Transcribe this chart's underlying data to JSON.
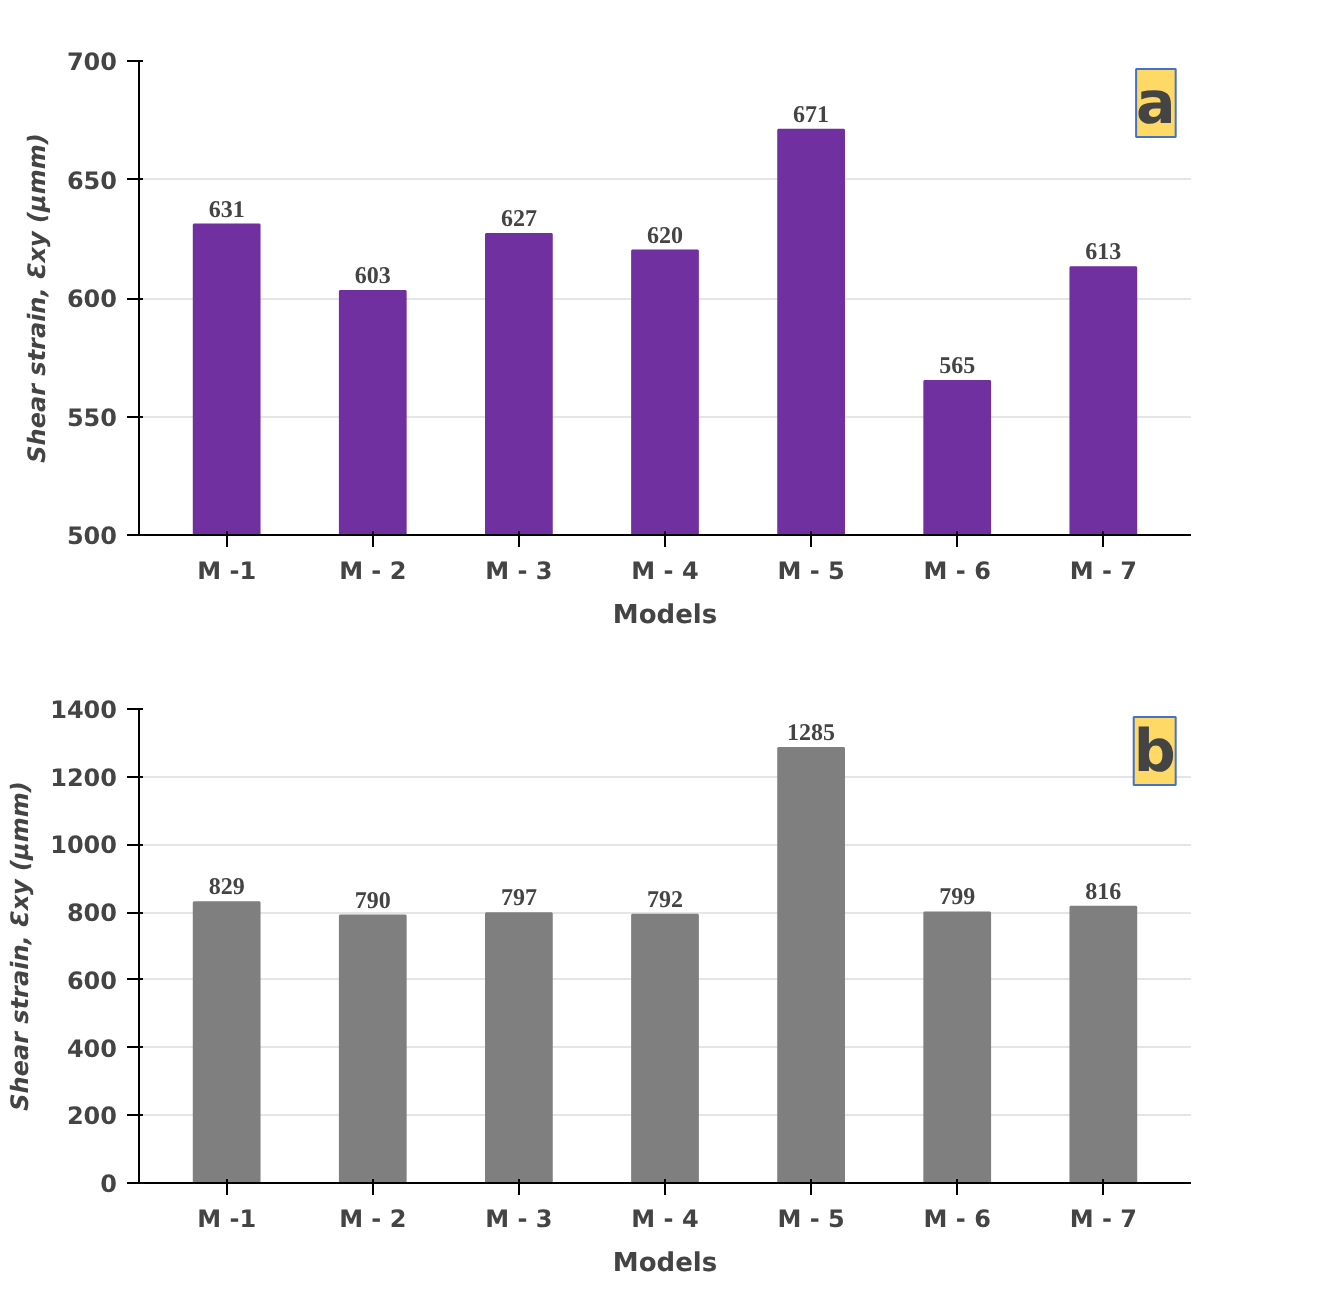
{
  "chart_data": [
    {
      "type": "bar",
      "categories": [
        "M -1",
        "M - 2",
        "M - 3",
        "M - 4",
        "M - 5",
        "M - 6",
        "M - 7"
      ],
      "values": [
        631,
        603,
        627,
        620,
        671,
        565,
        613
      ],
      "color": "#7030a0",
      "ylim": [
        500,
        700
      ],
      "yticks": [
        500,
        550,
        600,
        650,
        700
      ],
      "grid": "y",
      "data_labels": true,
      "xlabel": "Models",
      "ylabel": "Shear strain, Ɛxy (μmm)",
      "annotations": [
        "a"
      ]
    },
    {
      "type": "bar",
      "categories": [
        "M -1",
        "M - 2",
        "M - 3",
        "M - 4",
        "M - 5",
        "M - 6",
        "M - 7"
      ],
      "values": [
        829,
        790,
        797,
        792,
        1285,
        799,
        816
      ],
      "color": "#7f7f7f",
      "ylim": [
        0,
        1400
      ],
      "yticks": [
        0,
        200,
        400,
        600,
        800,
        1000,
        1200,
        1400
      ],
      "grid": "y",
      "data_labels": true,
      "xlabel": "Models",
      "ylabel": "Shear strain, Ɛxy (μmm)",
      "annotations": [
        "b"
      ]
    }
  ]
}
